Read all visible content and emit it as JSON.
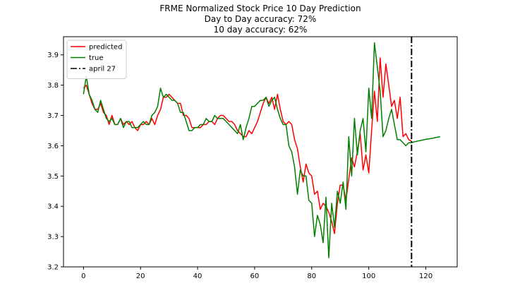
{
  "chart_data": {
    "type": "line",
    "title_lines": [
      "FRME Normalized Stock Price 10 Day Prediction",
      "Day to Day accuracy: 72%",
      "10 day accuracy: 62%"
    ],
    "xlim": [
      -7,
      131
    ],
    "ylim": [
      3.2,
      3.96
    ],
    "x_ticks": [
      0,
      20,
      40,
      60,
      80,
      100,
      120
    ],
    "y_ticks": [
      3.2,
      3.3,
      3.4,
      3.5,
      3.6,
      3.7,
      3.8,
      3.9
    ],
    "vline": {
      "x": 115,
      "label": "april 27",
      "color": "#000000"
    },
    "legend_placement": "top-left",
    "series": [
      {
        "name": "predicted",
        "color": "#ff0000",
        "x": [
          0,
          1,
          2,
          3,
          4,
          5,
          6,
          7,
          8,
          9,
          10,
          11,
          12,
          13,
          14,
          15,
          16,
          17,
          18,
          19,
          20,
          21,
          22,
          23,
          24,
          25,
          26,
          27,
          28,
          29,
          30,
          31,
          32,
          33,
          34,
          35,
          36,
          37,
          38,
          39,
          40,
          41,
          42,
          43,
          44,
          45,
          46,
          47,
          48,
          49,
          50,
          51,
          52,
          53,
          54,
          55,
          56,
          57,
          58,
          59,
          60,
          61,
          62,
          63,
          64,
          65,
          66,
          67,
          68,
          69,
          70,
          71,
          72,
          73,
          74,
          75,
          76,
          77,
          78,
          79,
          80,
          81,
          82,
          83,
          84,
          85,
          86,
          87,
          88,
          89,
          90,
          91,
          92,
          93,
          94,
          95,
          96,
          97,
          98,
          99,
          100,
          101,
          102,
          103,
          104,
          105,
          106,
          107,
          108,
          109,
          110,
          111,
          112,
          113,
          114,
          115
        ],
        "y": [
          3.79,
          3.8,
          3.77,
          3.74,
          3.72,
          3.72,
          3.74,
          3.71,
          3.7,
          3.67,
          3.7,
          3.67,
          3.67,
          3.69,
          3.67,
          3.68,
          3.67,
          3.68,
          3.66,
          3.65,
          3.67,
          3.67,
          3.68,
          3.67,
          3.69,
          3.67,
          3.7,
          3.72,
          3.76,
          3.76,
          3.77,
          3.76,
          3.75,
          3.74,
          3.74,
          3.7,
          3.7,
          3.69,
          3.66,
          3.66,
          3.66,
          3.66,
          3.67,
          3.67,
          3.68,
          3.68,
          3.67,
          3.69,
          3.7,
          3.7,
          3.69,
          3.68,
          3.68,
          3.67,
          3.65,
          3.64,
          3.63,
          3.63,
          3.65,
          3.64,
          3.66,
          3.68,
          3.71,
          3.74,
          3.76,
          3.74,
          3.76,
          3.72,
          3.77,
          3.72,
          3.68,
          3.67,
          3.68,
          3.67,
          3.62,
          3.59,
          3.53,
          3.48,
          3.54,
          3.51,
          3.5,
          3.44,
          3.45,
          3.39,
          3.41,
          3.4,
          3.38,
          3.35,
          3.31,
          3.41,
          3.47,
          3.47,
          3.42,
          3.49,
          3.56,
          3.53,
          3.58,
          3.64,
          3.52,
          3.57,
          3.51,
          3.65,
          3.78,
          3.68,
          3.89,
          3.76,
          3.87,
          3.8,
          3.73,
          3.75,
          3.69,
          3.76,
          3.63,
          3.64,
          3.62,
          3.615
        ]
      },
      {
        "name": "true",
        "color": "#008000",
        "x": [
          0,
          1,
          2,
          3,
          4,
          5,
          6,
          7,
          8,
          9,
          10,
          11,
          12,
          13,
          14,
          15,
          16,
          17,
          18,
          19,
          20,
          21,
          22,
          23,
          24,
          25,
          26,
          27,
          28,
          29,
          30,
          31,
          32,
          33,
          34,
          35,
          36,
          37,
          38,
          39,
          40,
          41,
          42,
          43,
          44,
          45,
          46,
          47,
          48,
          49,
          50,
          51,
          52,
          53,
          54,
          55,
          56,
          57,
          58,
          59,
          60,
          61,
          62,
          63,
          64,
          65,
          66,
          67,
          68,
          69,
          70,
          71,
          72,
          73,
          74,
          75,
          76,
          77,
          78,
          79,
          80,
          81,
          82,
          83,
          84,
          85,
          86,
          87,
          88,
          89,
          90,
          91,
          92,
          93,
          94,
          95,
          96,
          97,
          98,
          99,
          100,
          101,
          102,
          103,
          104,
          105,
          106,
          107,
          108,
          109,
          110,
          111,
          112,
          113,
          114,
          115
        ],
        "y": [
          3.77,
          3.83,
          3.77,
          3.75,
          3.72,
          3.71,
          3.75,
          3.72,
          3.69,
          3.68,
          3.69,
          3.67,
          3.67,
          3.69,
          3.66,
          3.68,
          3.68,
          3.66,
          3.66,
          3.66,
          3.67,
          3.68,
          3.67,
          3.67,
          3.7,
          3.71,
          3.73,
          3.79,
          3.76,
          3.77,
          3.76,
          3.75,
          3.75,
          3.74,
          3.71,
          3.71,
          3.68,
          3.65,
          3.65,
          3.66,
          3.66,
          3.67,
          3.67,
          3.69,
          3.68,
          3.68,
          3.7,
          3.69,
          3.69,
          3.69,
          3.68,
          3.67,
          3.66,
          3.65,
          3.64,
          3.67,
          3.62,
          3.66,
          3.69,
          3.73,
          3.73,
          3.74,
          3.75,
          3.75,
          3.76,
          3.73,
          3.75,
          3.76,
          3.72,
          3.69,
          3.67,
          3.67,
          3.6,
          3.58,
          3.53,
          3.44,
          3.52,
          3.5,
          3.5,
          3.42,
          3.41,
          3.3,
          3.37,
          3.34,
          3.28,
          3.43,
          3.23,
          3.41,
          3.33,
          3.45,
          3.41,
          3.48,
          3.39,
          3.63,
          3.5,
          3.69,
          3.57,
          3.65,
          3.69,
          3.58,
          3.79,
          3.69,
          3.94,
          3.86,
          3.78,
          3.63,
          3.65,
          3.69,
          3.72,
          3.67,
          3.62,
          3.62,
          3.61,
          3.6,
          3.61,
          3.61
        ]
      },
      {
        "name": "",
        "color": "#008000",
        "legend": false,
        "x": [
          115,
          116,
          118,
          120,
          122,
          124,
          125
        ],
        "y": [
          3.61,
          3.613,
          3.617,
          3.621,
          3.624,
          3.628,
          3.63
        ]
      }
    ],
    "grid": false
  }
}
